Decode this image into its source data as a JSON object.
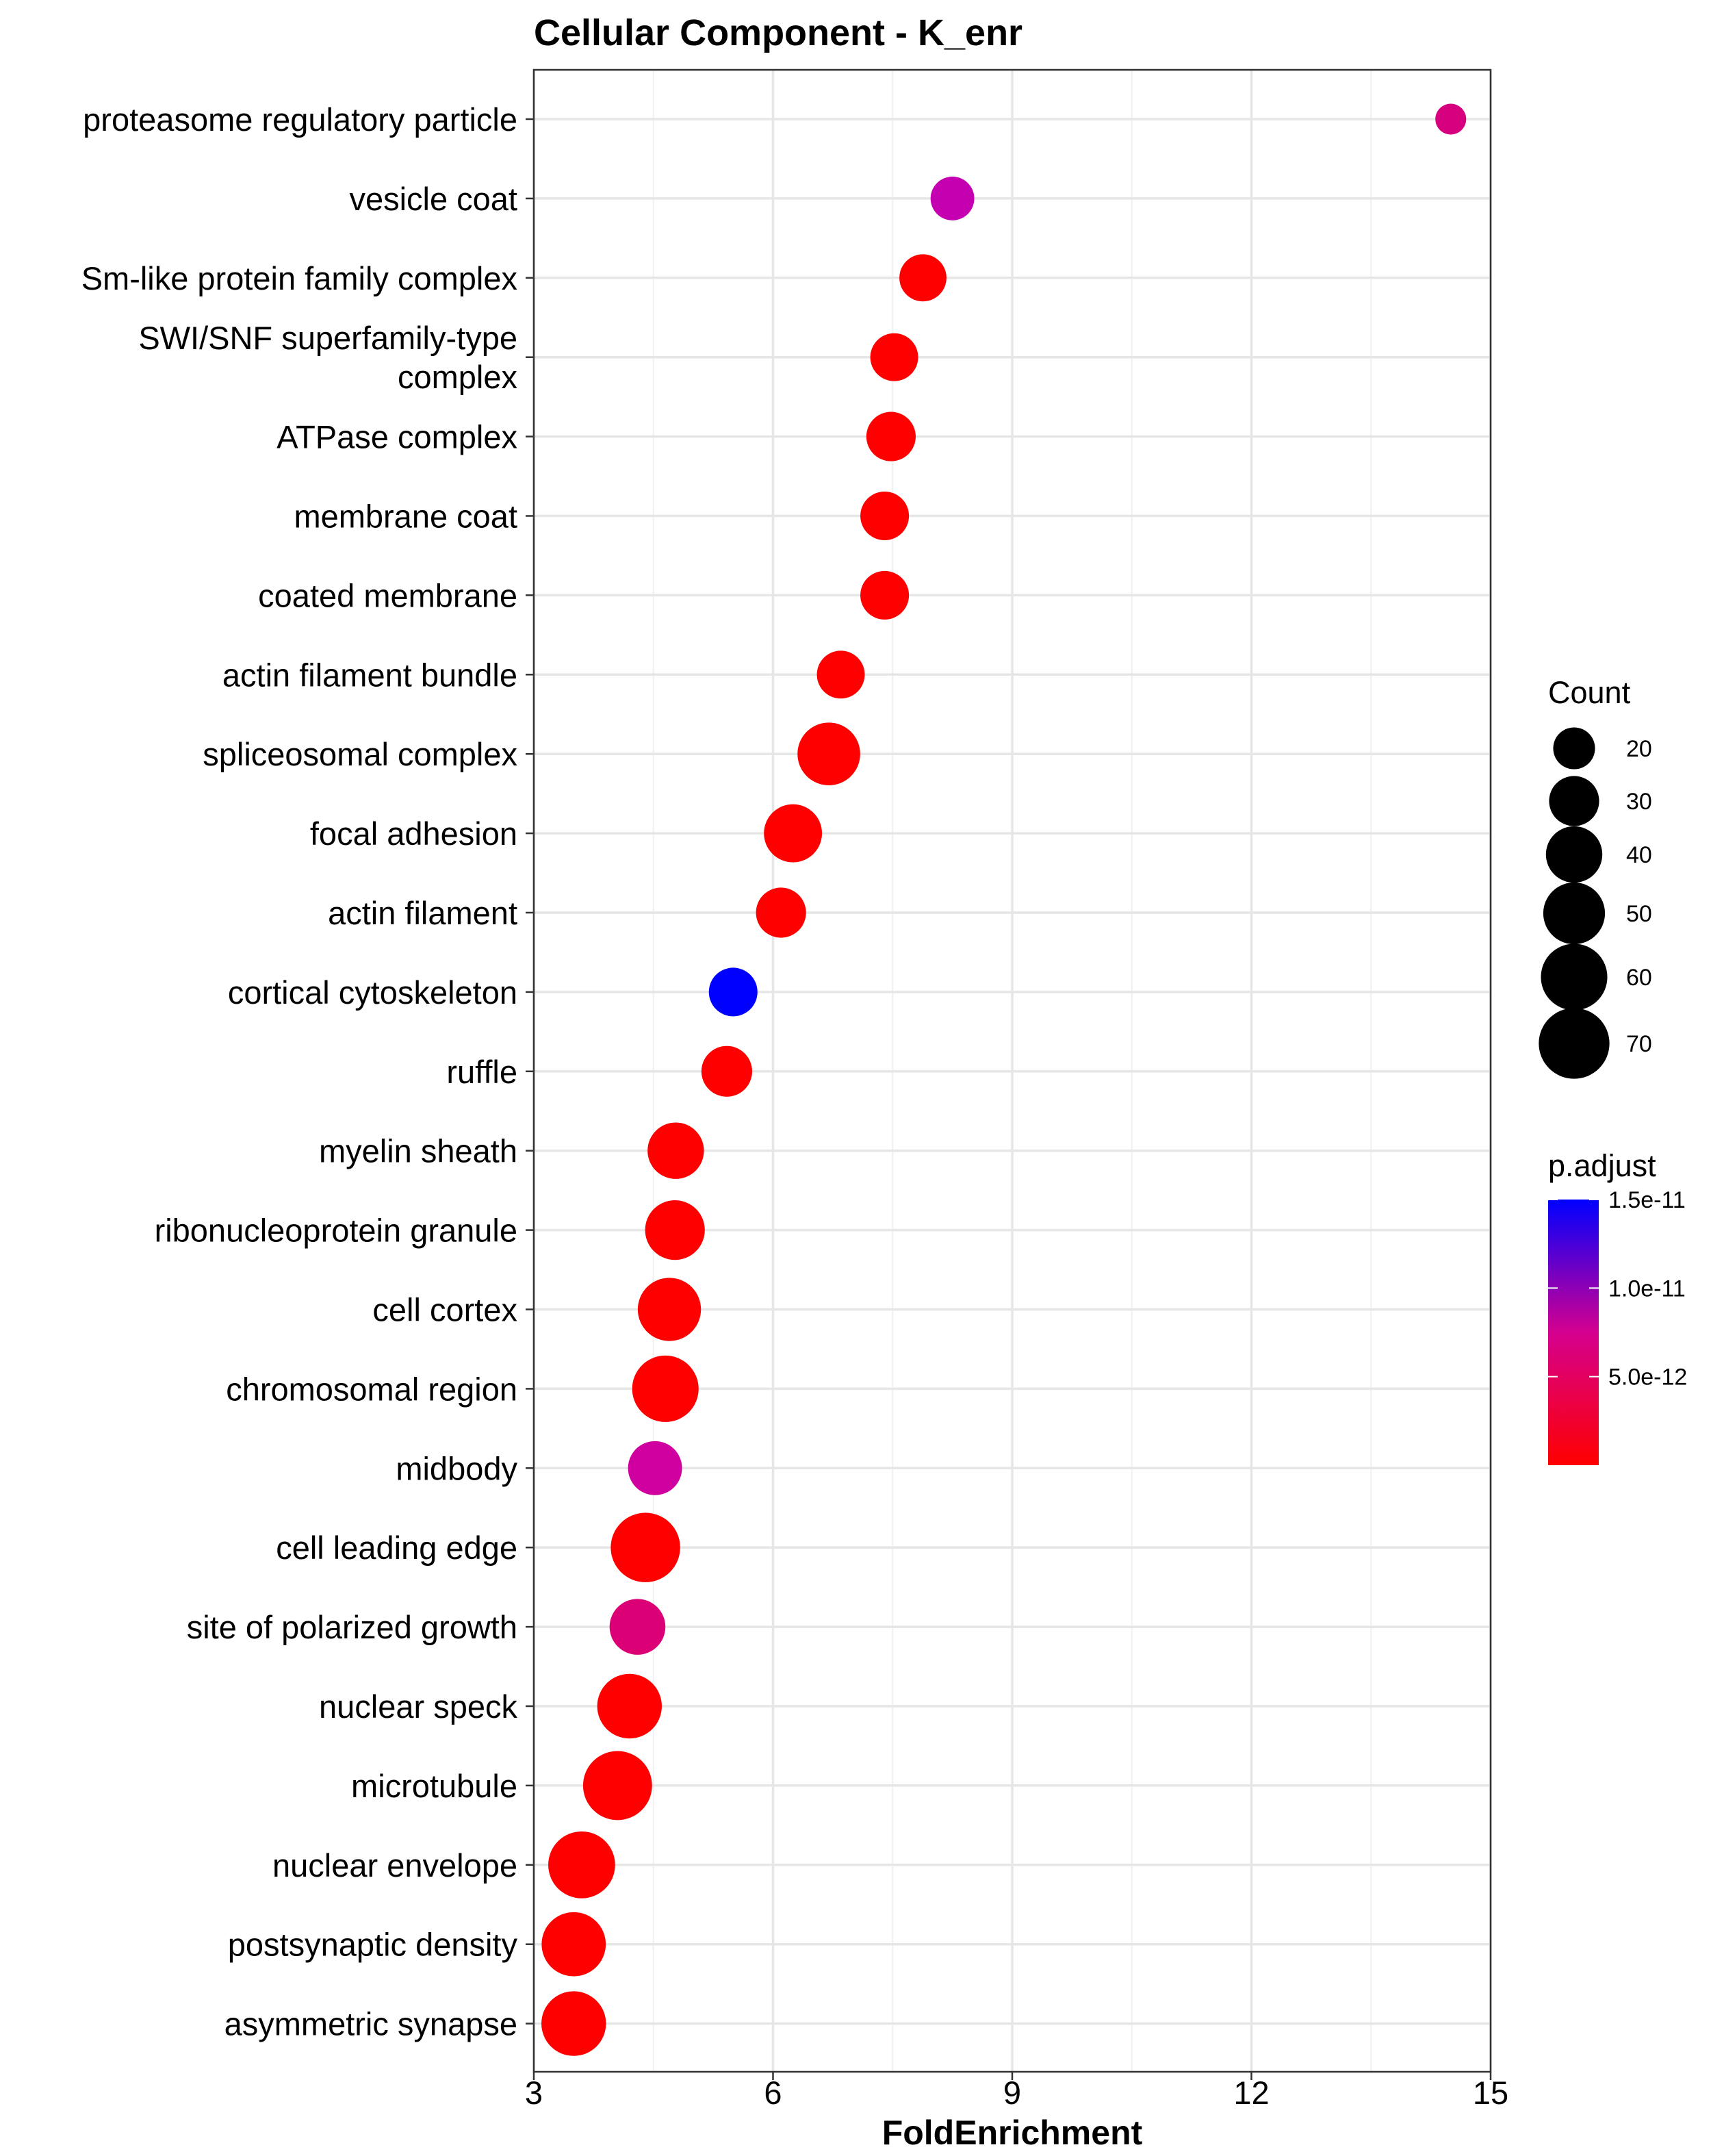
{
  "chart_data": {
    "type": "scatter",
    "title": "Cellular Component - K_enr",
    "xlabel": "FoldEnrichment",
    "ylabel": "",
    "xlim": [
      3,
      15
    ],
    "x_ticks": [
      "3",
      "6",
      "9",
      "12",
      "15"
    ],
    "x_tick_values": [
      3,
      6,
      9,
      12,
      15
    ],
    "grid": true,
    "legend_placement": "right",
    "points": [
      {
        "label": "proteasome regulatory particle",
        "label_lines": [
          "proteasome regulatory particle"
        ],
        "x": 14.5,
        "count": 12,
        "p_adjust": 6e-12,
        "color": "#d6007f"
      },
      {
        "label": "vesicle coat",
        "label_lines": [
          "vesicle coat"
        ],
        "x": 8.25,
        "count": 22,
        "p_adjust": 9e-12,
        "color": "#c400b0"
      },
      {
        "label": "Sm-like protein family complex",
        "label_lines": [
          "Sm-like protein family complex"
        ],
        "x": 7.88,
        "count": 26,
        "p_adjust": 1e-15,
        "color": "#ff0000"
      },
      {
        "label": "SWI/SNF superfamily-type complex",
        "label_lines": [
          "SWI/SNF superfamily-type",
          "complex"
        ],
        "x": 7.52,
        "count": 27,
        "p_adjust": 1e-15,
        "color": "#ff0000"
      },
      {
        "label": "ATPase complex",
        "label_lines": [
          "ATPase complex"
        ],
        "x": 7.48,
        "count": 29,
        "p_adjust": 1e-15,
        "color": "#ff0000"
      },
      {
        "label": "membrane coat",
        "label_lines": [
          "membrane coat"
        ],
        "x": 7.4,
        "count": 28,
        "p_adjust": 1e-15,
        "color": "#ff0000"
      },
      {
        "label": "coated membrane",
        "label_lines": [
          "coated membrane"
        ],
        "x": 7.4,
        "count": 28,
        "p_adjust": 1e-15,
        "color": "#ff0000"
      },
      {
        "label": "actin filament bundle",
        "label_lines": [
          "actin filament bundle"
        ],
        "x": 6.85,
        "count": 27,
        "p_adjust": 1e-15,
        "color": "#ff0000"
      },
      {
        "label": "spliceosomal complex",
        "label_lines": [
          "spliceosomal complex"
        ],
        "x": 6.7,
        "count": 52,
        "p_adjust": 1e-15,
        "color": "#ff0000"
      },
      {
        "label": "focal adhesion",
        "label_lines": [
          "focal adhesion"
        ],
        "x": 6.25,
        "count": 43,
        "p_adjust": 1e-15,
        "color": "#ff0000"
      },
      {
        "label": "actin filament",
        "label_lines": [
          "actin filament"
        ],
        "x": 6.1,
        "count": 30,
        "p_adjust": 1e-15,
        "color": "#ff0000"
      },
      {
        "label": "cortical cytoskeleton",
        "label_lines": [
          "cortical cytoskeleton"
        ],
        "x": 5.5,
        "count": 28,
        "p_adjust": 1.5e-11,
        "color": "#0000ff"
      },
      {
        "label": "ruffle",
        "label_lines": [
          "ruffle"
        ],
        "x": 5.42,
        "count": 31,
        "p_adjust": 1e-15,
        "color": "#ff0000"
      },
      {
        "label": "myelin sheath",
        "label_lines": [
          "myelin sheath"
        ],
        "x": 4.78,
        "count": 40,
        "p_adjust": 1e-15,
        "color": "#ff0000"
      },
      {
        "label": "ribonucleoprotein granule",
        "label_lines": [
          "ribonucleoprotein granule"
        ],
        "x": 4.77,
        "count": 46,
        "p_adjust": 1e-15,
        "color": "#ff0000"
      },
      {
        "label": "cell cortex",
        "label_lines": [
          "cell cortex"
        ],
        "x": 4.7,
        "count": 53,
        "p_adjust": 1e-15,
        "color": "#ff0000"
      },
      {
        "label": "chromosomal region",
        "label_lines": [
          "chromosomal region"
        ],
        "x": 4.65,
        "count": 60,
        "p_adjust": 1e-15,
        "color": "#ff0000"
      },
      {
        "label": "midbody",
        "label_lines": [
          "midbody"
        ],
        "x": 4.52,
        "count": 36,
        "p_adjust": 7e-12,
        "color": "#d000a0"
      },
      {
        "label": "cell leading edge",
        "label_lines": [
          "cell leading edge"
        ],
        "x": 4.4,
        "count": 67,
        "p_adjust": 1e-15,
        "color": "#ff0000"
      },
      {
        "label": "site of polarized growth",
        "label_lines": [
          "site of polarized growth"
        ],
        "x": 4.3,
        "count": 39,
        "p_adjust": 5.5e-12,
        "color": "#dc0077"
      },
      {
        "label": "nuclear speck",
        "label_lines": [
          "nuclear speck"
        ],
        "x": 4.2,
        "count": 56,
        "p_adjust": 1e-15,
        "color": "#ff0000"
      },
      {
        "label": "microtubule",
        "label_lines": [
          "microtubule"
        ],
        "x": 4.05,
        "count": 66,
        "p_adjust": 1e-15,
        "color": "#ff0000"
      },
      {
        "label": "nuclear envelope",
        "label_lines": [
          "nuclear envelope"
        ],
        "x": 3.6,
        "count": 61,
        "p_adjust": 1e-15,
        "color": "#ff0000"
      },
      {
        "label": "postsynaptic density",
        "label_lines": [
          "postsynaptic density"
        ],
        "x": 3.5,
        "count": 55,
        "p_adjust": 1e-15,
        "color": "#ff0000"
      },
      {
        "label": "asymmetric synapse",
        "label_lines": [
          "asymmetric synapse"
        ],
        "x": 3.5,
        "count": 56,
        "p_adjust": 1e-15,
        "color": "#ff0000"
      }
    ],
    "legend": {
      "size_title": "Count",
      "size_values": [
        20,
        30,
        40,
        50,
        60,
        70
      ],
      "size_labels": [
        "20",
        "30",
        "40",
        "50",
        "60",
        "70"
      ],
      "size_color": "#000000",
      "color_title": "p.adjust",
      "color_labels": [
        "1.5e-11",
        "1.0e-11",
        "5.0e-12"
      ],
      "color_values": [
        1.5e-11,
        1e-11,
        5e-12
      ],
      "color_range": [
        1e-15,
        1.5e-11
      ],
      "color_low": "#ff0000",
      "color_high": "#0000ff"
    }
  }
}
